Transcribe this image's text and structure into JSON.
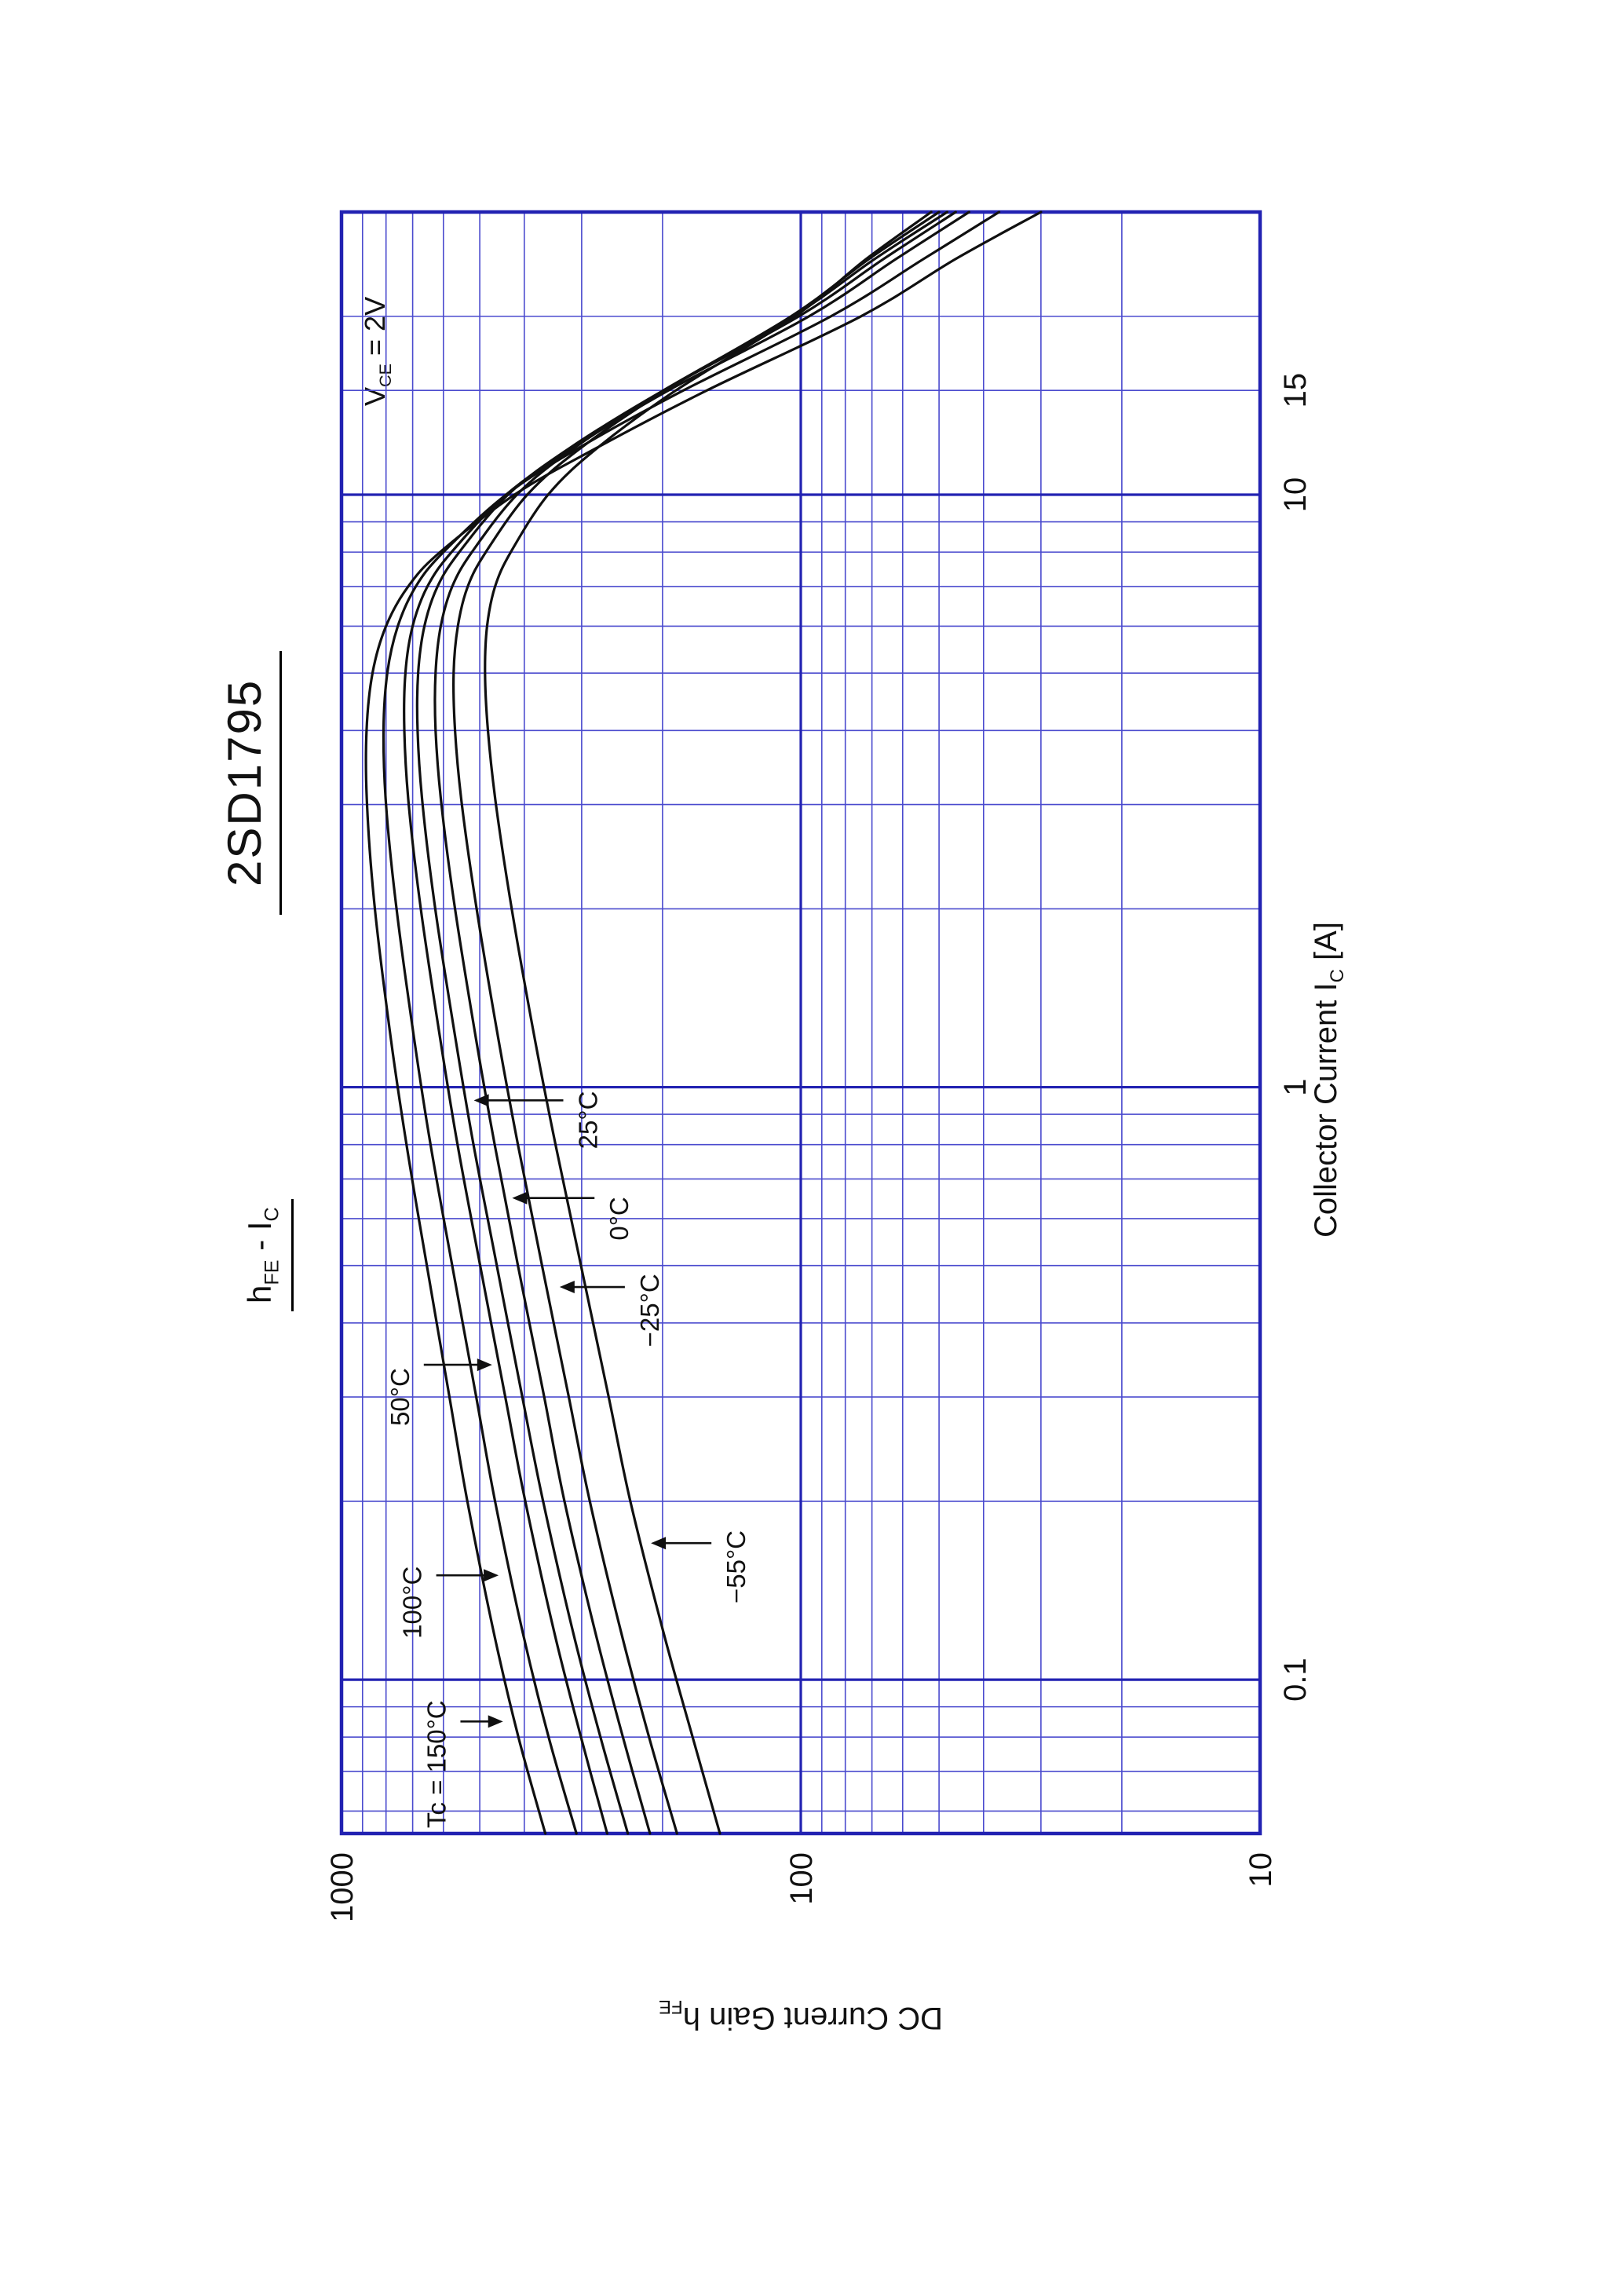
{
  "header": {
    "part_number": "2SD1795",
    "subtitle": {
      "h": "h",
      "fe": "FE",
      "sep": " - ",
      "i": "I",
      "c": "C"
    }
  },
  "condition": {
    "v": "V",
    "ce": "CE",
    "rest": " = 2V"
  },
  "axes": {
    "x_title": {
      "main": "Collector Current  I",
      "sub": "C",
      "unit": " [A]"
    },
    "y_title": {
      "main": "DC Current Gain  h",
      "sub": "FE"
    }
  },
  "chart_data": {
    "type": "line",
    "title": "hFE - IC",
    "part_number": "2SD1795",
    "condition": "VCE = 2V",
    "xlabel": "Collector Current IC [A]",
    "ylabel": "DC Current Gain hFE",
    "x_scale": "log",
    "y_scale": "log",
    "xlim": [
      0.055,
      30
    ],
    "ylim": [
      10,
      1000
    ],
    "grid": true,
    "legend": "none (curves labeled with arrows)",
    "x_major_ticks": [
      {
        "value": 0.1,
        "label": "0.1"
      },
      {
        "value": 1,
        "label": "1"
      },
      {
        "value": 10,
        "label": "10"
      },
      {
        "value": 15,
        "label": "15"
      }
    ],
    "y_major_ticks": [
      {
        "value": 10,
        "label": "10"
      },
      {
        "value": 100,
        "label": "100"
      },
      {
        "value": 1000,
        "label": "1000"
      }
    ],
    "x_grid_major": [
      0.1,
      1,
      10
    ],
    "x_grid_minor": [
      0.06,
      0.07,
      0.08,
      0.09,
      0.2,
      0.3,
      0.4,
      0.5,
      0.6,
      0.7,
      0.8,
      0.9,
      2,
      3,
      4,
      5,
      6,
      7,
      8,
      9,
      15,
      20
    ],
    "y_grid_major": [
      100
    ],
    "y_grid_minor": [
      20,
      30,
      40,
      50,
      60,
      70,
      80,
      90,
      200,
      300,
      400,
      500,
      600,
      700,
      800,
      900
    ],
    "ic_amps": [
      0.055,
      0.08,
      0.12,
      0.2,
      0.3,
      0.5,
      0.8,
      1.2,
      2,
      3,
      4,
      5,
      6,
      7,
      8,
      10,
      12,
      15,
      20,
      25,
      30
    ],
    "series": [
      {
        "name": "Tc = 150°C",
        "temp_c": 150,
        "hfe": [
          360,
          412,
          466,
          532,
          582,
          652,
          722,
          780,
          846,
          880,
          882,
          856,
          800,
          716,
          610,
          420,
          278,
          160,
          74,
          46,
          30
        ]
      },
      {
        "name": "100°C",
        "temp_c": 100,
        "hfe": [
          308,
          354,
          403,
          463,
          509,
          574,
          640,
          694,
          759,
          800,
          810,
          795,
          754,
          689,
          600,
          438,
          304,
          180,
          86,
          54,
          37
        ]
      },
      {
        "name": "50°C",
        "temp_c": 50,
        "hfe": [
          264,
          301,
          344,
          398,
          440,
          499,
          559,
          609,
          672,
          714,
          730,
          726,
          700,
          650,
          576,
          438,
          314,
          194,
          96,
          62,
          43
        ]
      },
      {
        "name": "25°C",
        "temp_c": 25,
        "hfe": [
          238,
          273,
          313,
          364,
          404,
          459,
          516,
          564,
          625,
          666,
          683,
          681,
          660,
          618,
          554,
          434,
          318,
          199,
          101,
          66,
          46
        ]
      },
      {
        "name": "0°C",
        "temp_c": 0,
        "hfe": [
          213,
          244,
          280,
          327,
          362,
          413,
          464,
          509,
          566,
          606,
          624,
          624,
          608,
          574,
          520,
          415,
          311,
          199,
          104,
          69,
          48
        ]
      },
      {
        "name": "−25°C",
        "temp_c": -25,
        "hfe": [
          186,
          214,
          246,
          288,
          320,
          366,
          413,
          455,
          508,
          547,
          566,
          570,
          558,
          531,
          485,
          394,
          301,
          197,
          105,
          71,
          50
        ]
      },
      {
        "name": "−55°C",
        "temp_c": -55,
        "hfe": [
          150,
          172,
          199,
          235,
          262,
          301,
          342,
          379,
          426,
          461,
          480,
          487,
          482,
          463,
          428,
          355,
          277,
          187,
          103,
          72,
          52
        ]
      }
    ],
    "annotations": [
      {
        "text": "Tc = 150°C",
        "label_ic": 0.072,
        "label_hfe": 620,
        "target_ic": 0.085,
        "target_hfe": 445,
        "dir": "down"
      },
      {
        "text": "100°C",
        "label_ic": 0.135,
        "label_hfe": 700,
        "target_ic": 0.15,
        "target_hfe": 455,
        "dir": "down"
      },
      {
        "text": "50°C",
        "label_ic": 0.3,
        "label_hfe": 745,
        "target_ic": 0.34,
        "target_hfe": 470,
        "dir": "down"
      },
      {
        "text": "25°C",
        "label_ic": 0.88,
        "label_hfe": 290,
        "target_ic": 0.95,
        "target_hfe": 515,
        "dir": "up"
      },
      {
        "text": "0°C",
        "label_ic": 0.6,
        "label_hfe": 248,
        "target_ic": 0.65,
        "target_hfe": 425,
        "dir": "up"
      },
      {
        "text": "−25°C",
        "label_ic": 0.42,
        "label_hfe": 213,
        "target_ic": 0.46,
        "target_hfe": 335,
        "dir": "up"
      },
      {
        "text": "−55°C",
        "label_ic": 0.155,
        "label_hfe": 138,
        "target_ic": 0.17,
        "target_hfe": 212,
        "dir": "up"
      }
    ],
    "colors": {
      "grid_minor": "#4a4ace",
      "grid_major": "#2222b2",
      "frame": "#2222b2",
      "curve": "#101010",
      "text": "#111111"
    }
  }
}
